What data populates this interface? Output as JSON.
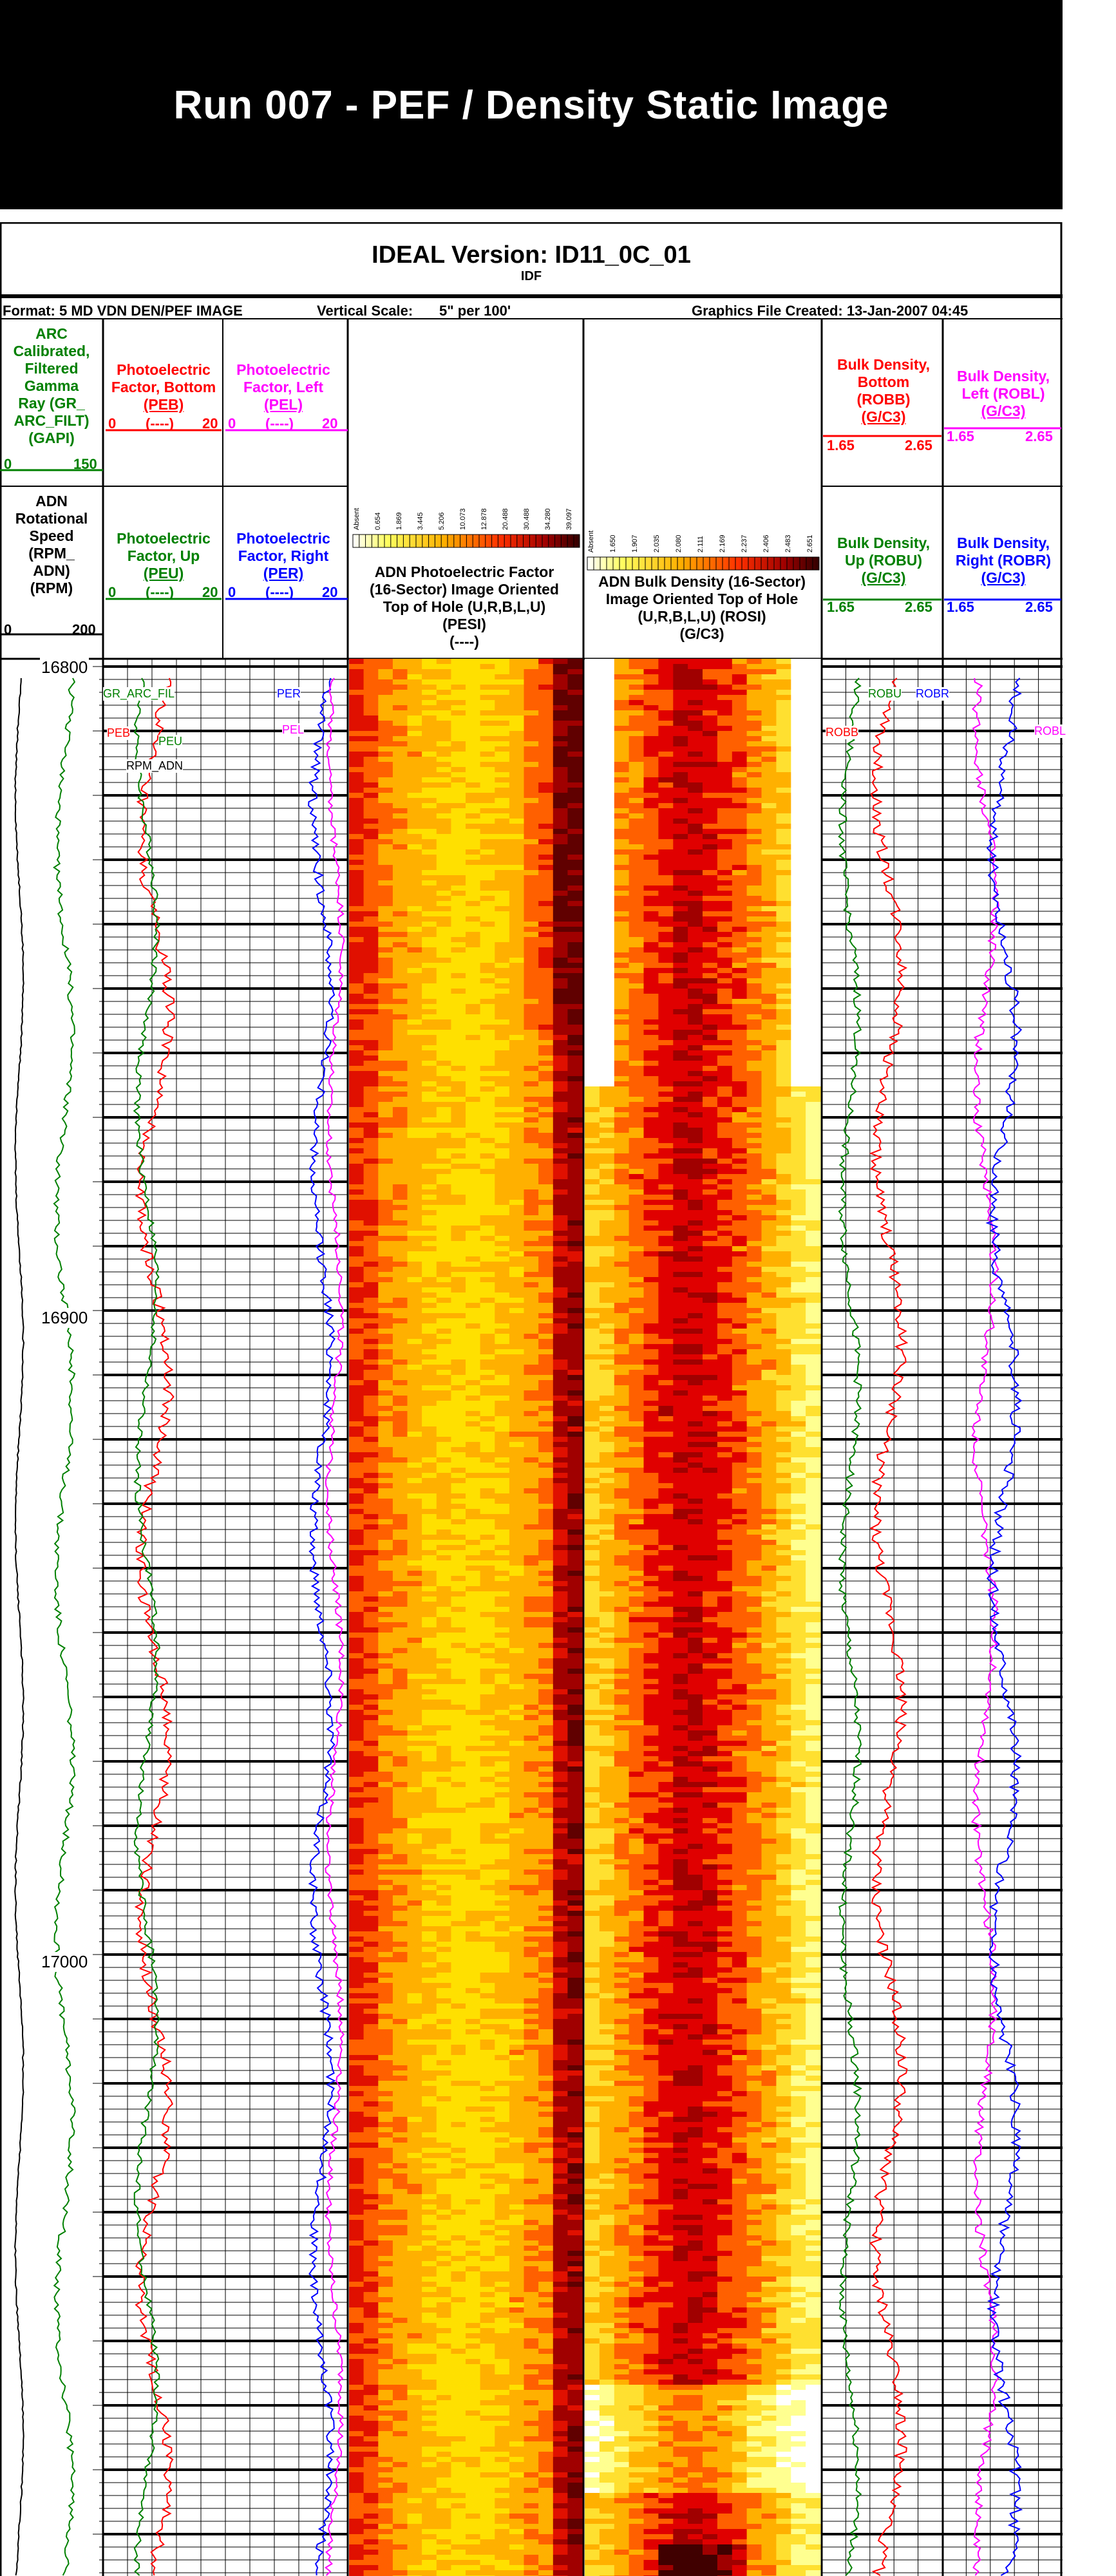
{
  "banner": {
    "title": "Run 007 - PEF / Density Static Image"
  },
  "header": {
    "title": "IDEAL Version: ID11_0C_01",
    "subtitle": "IDF",
    "format": "Format: 5 MD VDN DEN/PEF IMAGE",
    "vertical_scale_label": "Vertical Scale:",
    "vertical_scale": "5\" per 100'",
    "graphics_file": "Graphics File Created: 13-Jan-2007 04:45"
  },
  "tracks": {
    "gr": {
      "line1": "ARC",
      "line2": "Calibrated,",
      "line3": "Filtered",
      "line4": "Gamma",
      "line5": "Ray (GR_",
      "line6": "ARC_FILT)",
      "unit": "(GAPI)",
      "min": "0",
      "max": "150",
      "color": "#008000"
    },
    "rpm": {
      "line1": "ADN",
      "line2": "Rotational",
      "line3": "Speed",
      "line4": "(RPM_",
      "line5": "ADN)",
      "unit": "(RPM)",
      "min": "0",
      "max": "200"
    },
    "peb": {
      "line1": "Photoelectric",
      "line2": "Factor, Bottom",
      "mnem": "(PEB)",
      "min": "0",
      "dash": "(----)",
      "max": "20",
      "color": "#ff0000"
    },
    "pel": {
      "line1": "Photoelectric",
      "line2": "Factor, Left",
      "mnem": "(PEL)",
      "min": "0",
      "dash": "(----)",
      "max": "20",
      "color": "#ff00ff"
    },
    "peu": {
      "line1": "Photoelectric",
      "line2": "Factor, Up",
      "mnem": "(PEU)",
      "min": "0",
      "dash": "(----)",
      "max": "20",
      "color": "#008000"
    },
    "per": {
      "line1": "Photoelectric",
      "line2": "Factor, Right",
      "mnem": "(PER)",
      "min": "0",
      "dash": "(----)",
      "max": "20",
      "color": "#0000ff"
    },
    "pesi": {
      "line1": "ADN Photoelectric Factor",
      "line2": "(16-Sector) Image Oriented",
      "line3": "Top of Hole (U,R,B,L,U)",
      "line4": "(PESI)",
      "line5": "(----)"
    },
    "rosi": {
      "line1": "ADN Bulk Density (16-Sector)",
      "line2": "Image Oriented Top of Hole",
      "line3": "(U,R,B,L,U) (ROSI)",
      "line4": "(G/C3)"
    },
    "robb": {
      "line1": "Bulk Density,",
      "line2": "Bottom",
      "line3": "(ROBB)",
      "unit": "(G/C3)",
      "min": "1.65",
      "max": "2.65",
      "color": "#ff0000"
    },
    "robl": {
      "line1": "Bulk Density,",
      "line2": "Left (ROBL)",
      "unit": "(G/C3)",
      "min": "1.65",
      "max": "2.65",
      "color": "#ff00ff"
    },
    "robu": {
      "line1": "Bulk Density,",
      "line2": "Up (ROBU)",
      "unit": "(G/C3)",
      "min": "1.65",
      "max": "2.65",
      "color": "#008000"
    },
    "robr": {
      "line1": "Bulk Density,",
      "line2": "Right (ROBR)",
      "unit": "(G/C3)",
      "min": "1.65",
      "max": "2.65",
      "color": "#0000ff"
    }
  },
  "pef_colorbar_ticks": [
    "Absent",
    "0.654",
    "1.869",
    "3.445",
    "5.206",
    "10.073",
    "12.878",
    "20.488",
    "30.488",
    "34.280",
    "39.097"
  ],
  "den_colorbar_ticks": [
    "Absent",
    "1.650",
    "1.907",
    "2.035",
    "2.080",
    "2.111",
    "2.169",
    "2.237",
    "2.406",
    "2.483",
    "2.651"
  ],
  "depths": [
    "16800",
    "16900",
    "17000"
  ],
  "curve_labels": {
    "gr": "GR_ARC_FIL",
    "rpm": "RPM_ADN",
    "peb": "PEB",
    "peu": "PEU",
    "per": "PER",
    "pel": "PEL",
    "robb": "ROBB",
    "robu": "ROBU",
    "robr": "ROBR",
    "robl": "ROBL"
  },
  "colors": {
    "pef_low": "#ffff40",
    "pef_mid": "#ff8000",
    "pef_high": "#c00000",
    "pef_max": "#600000",
    "den_low": "#ffffff",
    "den_high": "#400000"
  }
}
